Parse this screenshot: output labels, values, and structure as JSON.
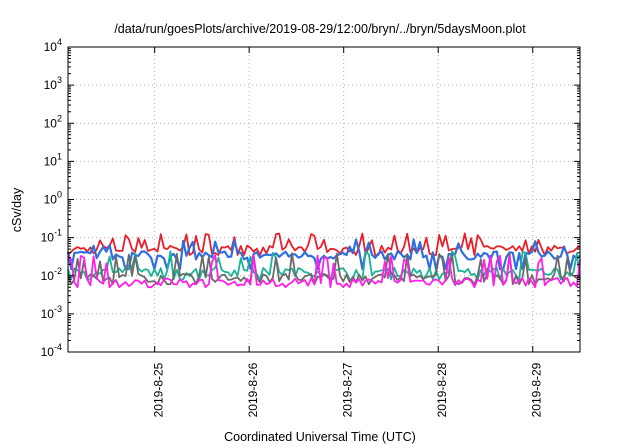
{
  "chart_data": {
    "type": "line",
    "title": "/data/run/goesPlots/archive/2019-08-29/12:00/bryn/../bryn/5daysMoon.plot",
    "xlabel": "Coordinated Universal Time (UTC)",
    "ylabel": "cSv/day",
    "yscale": "log",
    "ylim": [
      0.0001,
      10000
    ],
    "xlim": [
      "2019-08-24 02:00",
      "2019-08-29 12:00"
    ],
    "yticks": [
      {
        "value": 0.0001,
        "base": "10",
        "exp": "-4"
      },
      {
        "value": 0.001,
        "base": "10",
        "exp": "-3"
      },
      {
        "value": 0.01,
        "base": "10",
        "exp": "-2"
      },
      {
        "value": 0.1,
        "base": "10",
        "exp": "-1"
      },
      {
        "value": 1,
        "base": "10",
        "exp": "0"
      },
      {
        "value": 10,
        "base": "10",
        "exp": "1"
      },
      {
        "value": 100,
        "base": "10",
        "exp": "2"
      },
      {
        "value": 1000,
        "base": "10",
        "exp": "3"
      },
      {
        "value": 10000,
        "base": "10",
        "exp": "4"
      }
    ],
    "xticks": [
      "2019-8-25",
      "2019-8-26",
      "2019-8-27",
      "2019-8-28",
      "2019-8-29"
    ],
    "grid": true,
    "series": [
      {
        "color": "#e8202a",
        "baseline": 0.05,
        "peak": 0.13,
        "dip": 0.035
      },
      {
        "color": "#2f6fe0",
        "baseline": 0.035,
        "peak": 0.09,
        "dip": 0.015
      },
      {
        "color": "#19b495",
        "baseline": 0.013,
        "peak": 0.045,
        "dip": 0.008
      },
      {
        "color": "#6a6a6a",
        "baseline": 0.009,
        "peak": 0.04,
        "dip": 0.006
      },
      {
        "color": "#ff20e8",
        "baseline": 0.007,
        "peak": 0.035,
        "dip": 0.005
      }
    ]
  }
}
